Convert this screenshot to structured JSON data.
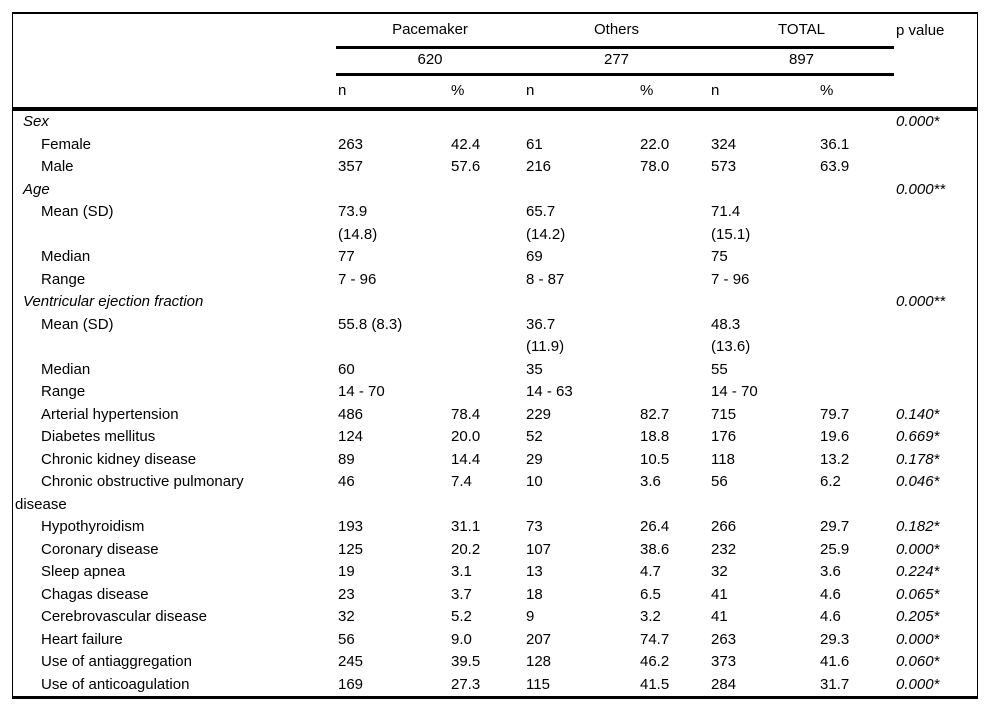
{
  "table": {
    "p_header": "p value",
    "groups": [
      {
        "label": "Pacemaker",
        "count": "620"
      },
      {
        "label": "Others",
        "count": "277"
      },
      {
        "label": "TOTAL",
        "count": "897"
      }
    ],
    "subheaders": {
      "n": "n",
      "pct": "%"
    },
    "rows": [
      {
        "type": "section",
        "label": "Sex",
        "cells": [
          "",
          "",
          "",
          "",
          "",
          ""
        ],
        "p": "0.000*"
      },
      {
        "type": "item",
        "label": "Female",
        "cells": [
          "263",
          "42.4",
          "61",
          "22.0",
          "324",
          "36.1"
        ],
        "p": ""
      },
      {
        "type": "item",
        "label": "Male",
        "cells": [
          "357",
          "57.6",
          "216",
          "78.0",
          "573",
          "63.9"
        ],
        "p": ""
      },
      {
        "type": "section",
        "label": "Age",
        "cells": [
          "",
          "",
          "",
          "",
          "",
          ""
        ],
        "p": "0.000**"
      },
      {
        "type": "item",
        "label": "Mean (SD)",
        "cells": [
          "73.9\n(14.8)",
          "",
          "65.7\n(14.2)",
          "",
          "71.4\n(15.1)",
          ""
        ],
        "p": ""
      },
      {
        "type": "item",
        "label": "Median",
        "cells": [
          "77",
          "",
          "69",
          "",
          "75",
          ""
        ],
        "p": ""
      },
      {
        "type": "item",
        "label": "Range",
        "cells": [
          "7 - 96",
          "",
          "8 - 87",
          "",
          "7 - 96",
          ""
        ],
        "p": ""
      },
      {
        "type": "section",
        "label": "Ventricular ejection fraction",
        "cells": [
          "",
          "",
          "",
          "",
          "",
          ""
        ],
        "p": "0.000**"
      },
      {
        "type": "item",
        "label": "Mean (SD)",
        "cells": [
          "55.8 (8.3)",
          "",
          "36.7\n(11.9)",
          "",
          "48.3\n(13.6)",
          ""
        ],
        "p": ""
      },
      {
        "type": "item",
        "label": "Median",
        "cells": [
          "60",
          "",
          "35",
          "",
          "55",
          ""
        ],
        "p": ""
      },
      {
        "type": "item",
        "label": "Range",
        "cells": [
          "14 - 70",
          "",
          "14 - 63",
          "",
          "14 - 70",
          ""
        ],
        "p": ""
      },
      {
        "type": "item",
        "label": "Arterial hypertension",
        "cells": [
          "486",
          "78.4",
          "229",
          "82.7",
          "715",
          "79.7"
        ],
        "p": "0.140*"
      },
      {
        "type": "item",
        "label": "Diabetes mellitus",
        "cells": [
          "124",
          "20.0",
          "52",
          "18.8",
          "176",
          "19.6"
        ],
        "p": "0.669*"
      },
      {
        "type": "item",
        "label": "Chronic kidney disease",
        "cells": [
          "89",
          "14.4",
          "29",
          "10.5",
          "118",
          "13.2"
        ],
        "p": "0.178*"
      },
      {
        "type": "item",
        "label": "Chronic obstructive pulmonary\ndisease",
        "cells": [
          "46",
          "7.4",
          "10",
          "3.6",
          "56",
          "6.2"
        ],
        "p": "0.046*"
      },
      {
        "type": "item",
        "label": "Hypothyroidism",
        "cells": [
          "193",
          "31.1",
          "73",
          "26.4",
          "266",
          "29.7"
        ],
        "p": "0.182*"
      },
      {
        "type": "item",
        "label": "Coronary disease",
        "cells": [
          "125",
          "20.2",
          "107",
          "38.6",
          "232",
          "25.9"
        ],
        "p": "0.000*"
      },
      {
        "type": "item",
        "label": "Sleep apnea",
        "cells": [
          "19",
          "3.1",
          "13",
          "4.7",
          "32",
          "3.6"
        ],
        "p": "0.224*"
      },
      {
        "type": "item",
        "label": "Chagas disease",
        "cells": [
          "23",
          "3.7",
          "18",
          "6.5",
          "41",
          "4.6"
        ],
        "p": "0.065*"
      },
      {
        "type": "item",
        "label": "Cerebrovascular disease",
        "cells": [
          "32",
          "5.2",
          "9",
          "3.2",
          "41",
          "4.6"
        ],
        "p": "0.205*"
      },
      {
        "type": "item",
        "label": "Heart failure",
        "cells": [
          "56",
          "9.0",
          "207",
          "74.7",
          "263",
          "29.3"
        ],
        "p": "0.000*"
      },
      {
        "type": "item",
        "label": "Use of antiaggregation",
        "cells": [
          "245",
          "39.5",
          "128",
          "46.2",
          "373",
          "41.6"
        ],
        "p": "0.060*"
      },
      {
        "type": "item",
        "label": "Use of anticoagulation",
        "cells": [
          "169",
          "27.3",
          "115",
          "41.5",
          "284",
          "31.7"
        ],
        "p": "0.000*"
      }
    ]
  }
}
